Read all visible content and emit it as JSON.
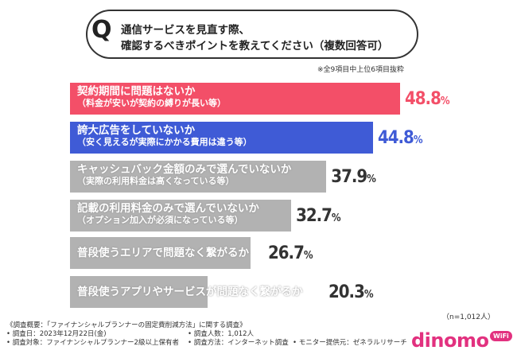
{
  "question": {
    "mark": "Q",
    "line1": "通信サービスを見直す際、",
    "line2": "確認するべきポイントを教えてください（複数回答可）",
    "note": "※全9項目中上位6項目抜粋"
  },
  "chart_data": {
    "type": "bar",
    "orientation": "horizontal",
    "xlim": [
      0,
      50
    ],
    "categories": [
      "契約期間に問題はないか",
      "誇大広告をしていないか",
      "キャッシュバック金額のみで選んでいないか",
      "記載の利用料金のみで選んでいないか",
      "普段使うエリアで問題なく繋がるか",
      "普段使うアプリやサービスが問題なく繋がるか"
    ],
    "subcategories": [
      "（料金が安いが契約の縛りが長い等）",
      "（安く見えるが実際にかかる費用は違う等）",
      "（実際の利用料金は高くなっている等）",
      "（オプション加入が必須になっている等）",
      "",
      ""
    ],
    "values": [
      48.8,
      44.8,
      37.9,
      32.7,
      26.7,
      20.3
    ],
    "value_labels": [
      "48.8",
      "44.8",
      "37.9",
      "32.7",
      "26.7",
      "20.3"
    ],
    "unit": "%",
    "colors": [
      "#f34f68",
      "#3f5bd6",
      "#b2b2b2",
      "#b2b2b2",
      "#b2b2b2",
      "#b2b2b2"
    ],
    "value_colors": [
      "#f34f68",
      "#3f5bd6",
      "#333333",
      "#333333",
      "#333333",
      "#333333"
    ]
  },
  "sample_note": "（n=1,012人）",
  "footer": {
    "overview": "《調査概要：「ファイナンシャルプランナーの固定費削減方法」に関する調査》",
    "date": "• 調査日：2023年12月22日(金)",
    "target": "• 調査対象：ファイナンシャルプランナー2級以上保有者",
    "count": "• 調査人数：1,012人",
    "method": "• 調査方法：インターネット調査",
    "provider": "• モニター提供元：ゼネラルリサーチ"
  },
  "logo": {
    "text": "dinomo",
    "badge": "WiFi"
  }
}
